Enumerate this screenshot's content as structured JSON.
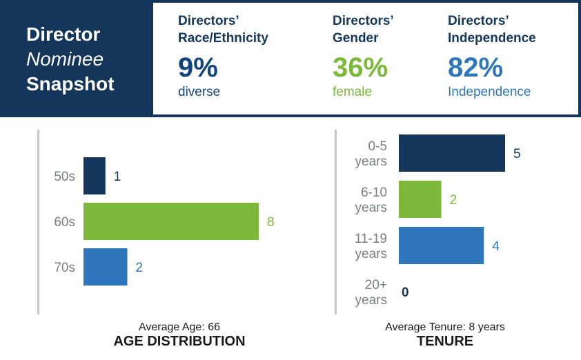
{
  "header": {
    "title_lines": [
      "Director",
      "Nominee",
      "Snapshot"
    ],
    "stats": [
      {
        "label_line1": "Directors’",
        "label_line2": "Race/Ethnicity",
        "value": "9%",
        "sub": "diverse",
        "color": "#13447b"
      },
      {
        "label_line1": "Directors’",
        "label_line2": "Gender",
        "value": "36%",
        "sub": "female",
        "color": "#7cb83a"
      },
      {
        "label_line1": "Directors’",
        "label_line2": "Independence",
        "value": "82%",
        "sub": "Independence",
        "color": "#2f76bd"
      }
    ]
  },
  "colors": {
    "navy": "#13365a",
    "green": "#7cb83a",
    "blue": "#2f76bd",
    "axis": "#c4c6ca",
    "label_gray": "#7b7d81"
  },
  "chart_data": [
    {
      "type": "bar",
      "orientation": "horizontal",
      "title": "AGE DISTRIBUTION",
      "subtitle": "Average Age: 66",
      "categories": [
        [
          "50s"
        ],
        [
          "60s"
        ],
        [
          "70s"
        ]
      ],
      "values": [
        1,
        8,
        2
      ],
      "value_labels": [
        "1",
        "8",
        "2"
      ],
      "bar_colors": [
        "#13365a",
        "#7cb83a",
        "#2f76bd"
      ],
      "label_colors": [
        "#13365a",
        "#7cb83a",
        "#2f76bd"
      ],
      "xlim": [
        0,
        8
      ]
    },
    {
      "type": "bar",
      "orientation": "horizontal",
      "title": "TENURE",
      "subtitle": "Average Tenure: 8 years",
      "categories": [
        [
          "0-5",
          "years"
        ],
        [
          "6-10",
          "years"
        ],
        [
          "11-19",
          "years"
        ],
        [
          "20+",
          "years"
        ]
      ],
      "values": [
        5,
        2,
        4,
        0
      ],
      "value_labels": [
        "5",
        "2",
        "4",
        "0"
      ],
      "bar_colors": [
        "#13365a",
        "#7cb83a",
        "#2f76bd",
        "#13365a"
      ],
      "label_colors": [
        "#13365a",
        "#7cb83a",
        "#2f76bd",
        "#13365a"
      ],
      "xlim": [
        0,
        5
      ]
    }
  ]
}
